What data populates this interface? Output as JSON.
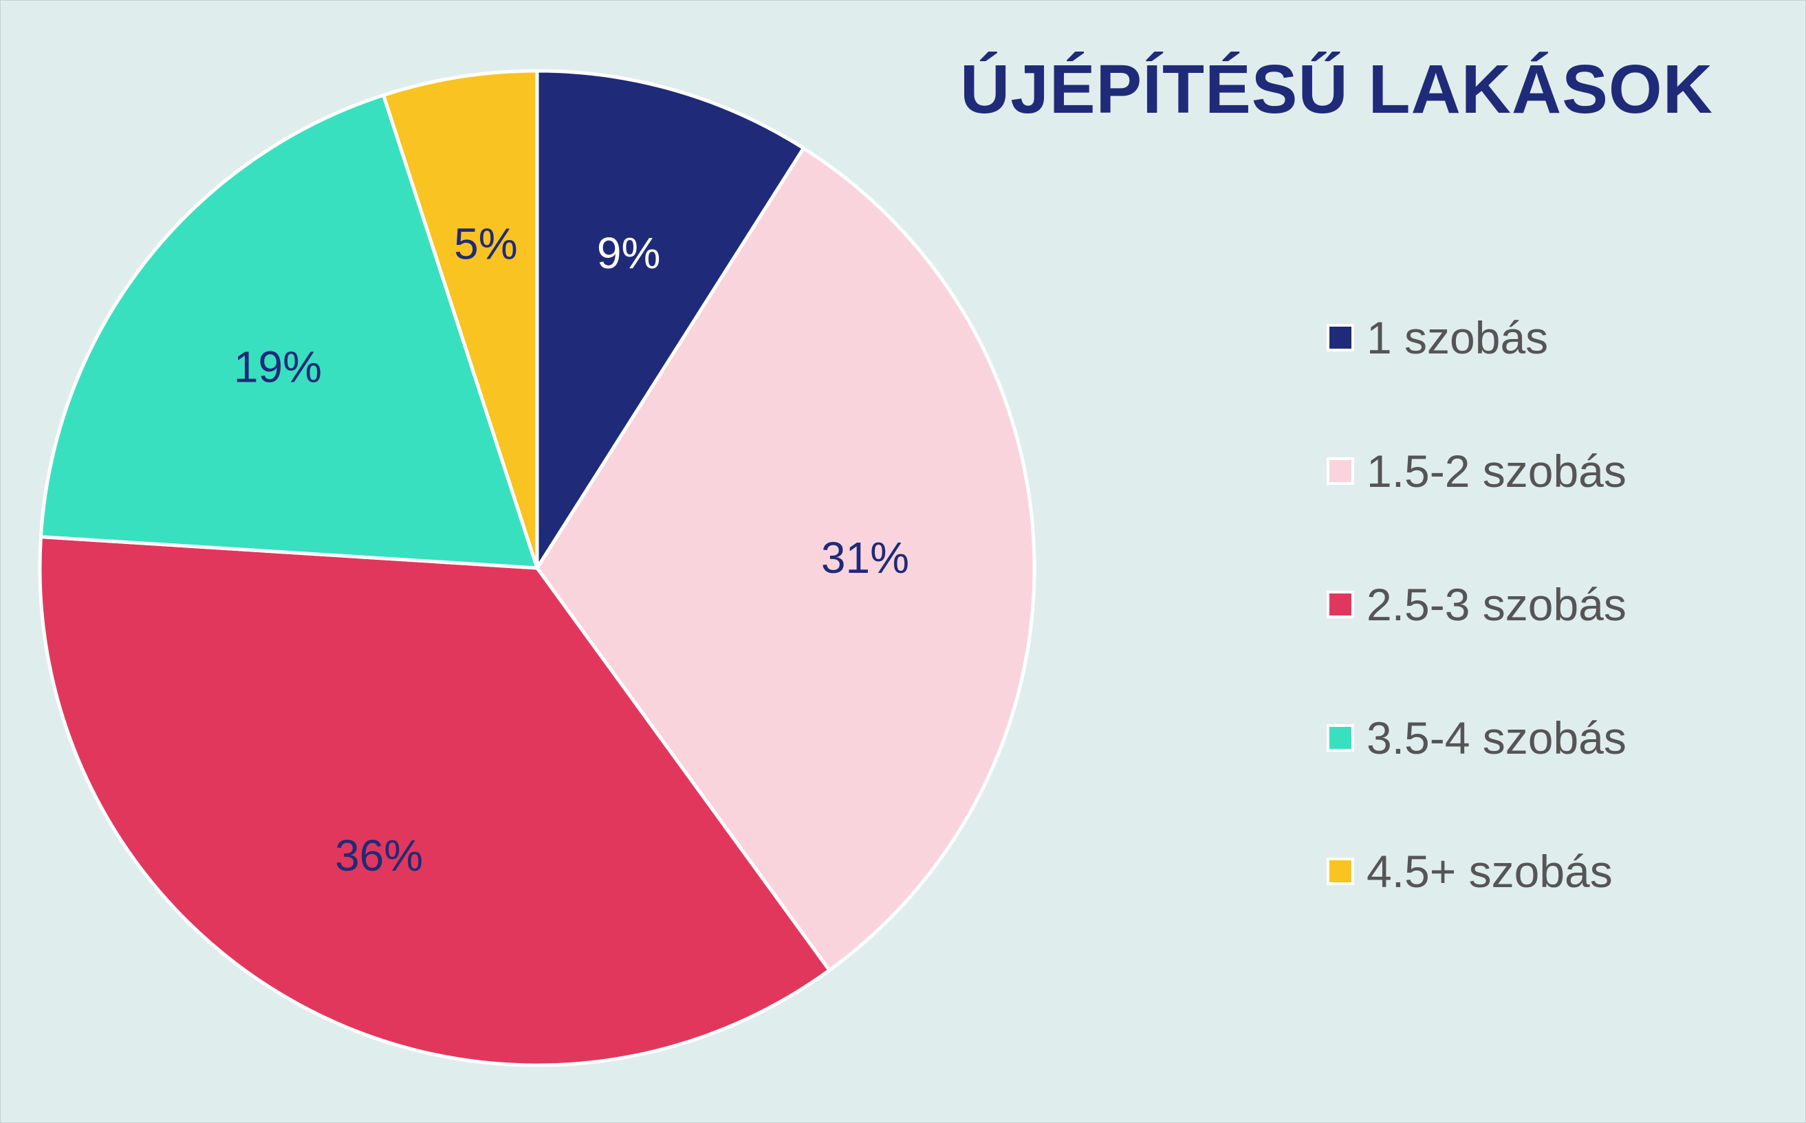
{
  "chart_data": {
    "type": "pie",
    "title": "ÚJÉPÍTÉSŰ LAKÁSOK",
    "categories": [
      "1 szobás",
      "1.5-2 szobás",
      "2.5-3 szobás",
      "3.5-4 szobás",
      "4.5+ szobás"
    ],
    "values": [
      9,
      31,
      36,
      19,
      5
    ],
    "data_labels": [
      "9%",
      "31%",
      "36%",
      "19%",
      "5%"
    ],
    "colors": [
      "#1f2b78",
      "#fad4dd",
      "#e2375c",
      "#38e0bf",
      "#f9c322"
    ],
    "label_colors": [
      "#ffffff",
      "#1f2b78",
      "#1f2b78",
      "#1f2b78",
      "#1f2b78"
    ],
    "legend_position": "right",
    "start_angle": "12 o'clock, clockwise"
  }
}
